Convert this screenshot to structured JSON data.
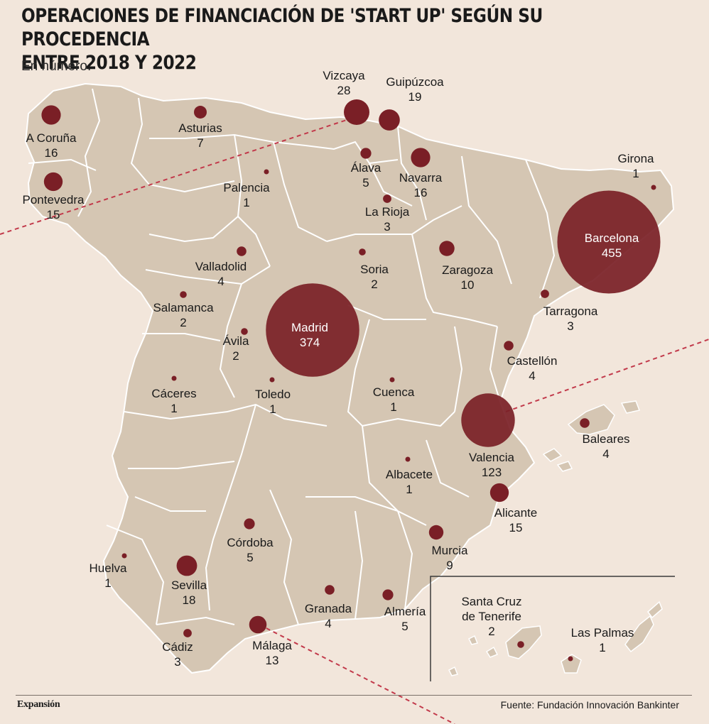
{
  "title_line1": "OPERACIONES DE FINANCIACIÓN DE 'START UP' SEGÚN SU PROCEDENCIA",
  "title_line2": "ENTRE 2018 Y 2022",
  "subtitle": "En número.",
  "brand": "Expansión",
  "source": "Fuente: Fundación Innovación Bankinter",
  "colors": {
    "background": "#f2e6db",
    "land": "#d5c6b3",
    "border": "#ffffff",
    "bubble": "#7a1f26",
    "guide_line": "#c23a4b"
  },
  "provinces": [
    {
      "name": "A Coruña",
      "value": "16"
    },
    {
      "name": "Pontevedra",
      "value": "15"
    },
    {
      "name": "Asturias",
      "value": "7"
    },
    {
      "name": "Vizcaya",
      "value": "28"
    },
    {
      "name": "Guipúzcoa",
      "value": "19"
    },
    {
      "name": "Álava",
      "value": "5"
    },
    {
      "name": "Navarra",
      "value": "16"
    },
    {
      "name": "Girona",
      "value": "1"
    },
    {
      "name": "Palencia",
      "value": "1"
    },
    {
      "name": "La Rioja",
      "value": "3"
    },
    {
      "name": "Barcelona",
      "value": "455"
    },
    {
      "name": "Valladolid",
      "value": "4"
    },
    {
      "name": "Soria",
      "value": "2"
    },
    {
      "name": "Zaragoza",
      "value": "10"
    },
    {
      "name": "Tarragona",
      "value": "3"
    },
    {
      "name": "Salamanca",
      "value": "2"
    },
    {
      "name": "Madrid",
      "value": "374"
    },
    {
      "name": "Ávila",
      "value": "2"
    },
    {
      "name": "Castellón",
      "value": "4"
    },
    {
      "name": "Cáceres",
      "value": "1"
    },
    {
      "name": "Toledo",
      "value": "1"
    },
    {
      "name": "Cuenca",
      "value": "1"
    },
    {
      "name": "Valencia",
      "value": "123"
    },
    {
      "name": "Baleares",
      "value": "4"
    },
    {
      "name": "Albacete",
      "value": "1"
    },
    {
      "name": "Alicante",
      "value": "15"
    },
    {
      "name": "Córdoba",
      "value": "5"
    },
    {
      "name": "Murcia",
      "value": "9"
    },
    {
      "name": "Huelva",
      "value": "1"
    },
    {
      "name": "Sevilla",
      "value": "18"
    },
    {
      "name": "Granada",
      "value": "4"
    },
    {
      "name": "Almería",
      "value": "5"
    },
    {
      "name": "Cádiz",
      "value": "3"
    },
    {
      "name": "Málaga",
      "value": "13"
    },
    {
      "name": "Santa Cruz de Tenerife",
      "name_line1": "Santa Cruz",
      "name_line2": "de Tenerife",
      "value": "2"
    },
    {
      "name": "Las Palmas",
      "value": "1"
    }
  ]
}
